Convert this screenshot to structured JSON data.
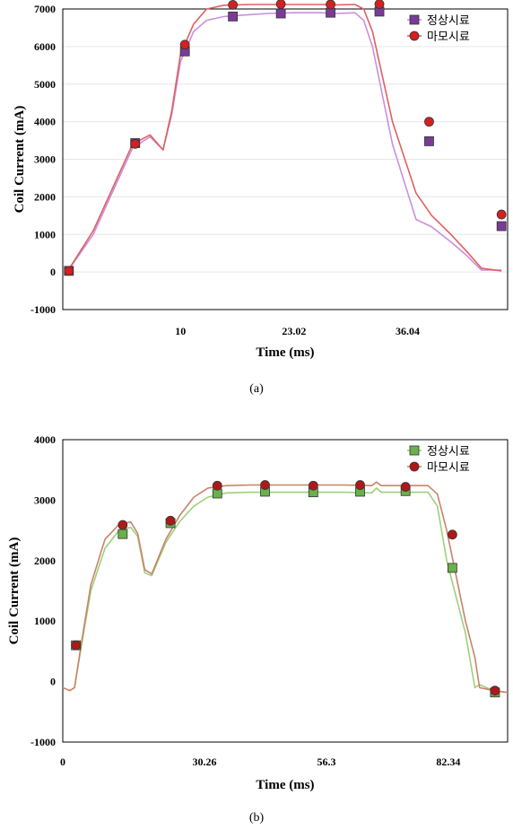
{
  "chart_data": [
    {
      "type": "line",
      "caption": "(a)",
      "ylabel": "Coil Current (mA)",
      "xlabel": "Time (ms)",
      "ylim": [
        -1000,
        7000
      ],
      "xlim": [
        -3.5,
        47.5
      ],
      "yticks": [
        -1000,
        0,
        1000,
        2000,
        3000,
        4000,
        5000,
        6000,
        7000
      ],
      "xticks": [
        10,
        23.02,
        36.04
      ],
      "xtick_labels": [
        "10",
        "23.02",
        "36.04"
      ],
      "grid": true,
      "legend_position": "top-right",
      "series": [
        {
          "name": "정상시료",
          "color": "#7a3b97",
          "line_color": "#c890dc",
          "marker": "square",
          "x": [
            -3,
            0,
            4.5,
            6.5,
            8,
            9,
            10,
            11.5,
            13,
            15,
            18,
            20,
            23,
            26,
            28,
            30,
            31,
            32,
            34.3,
            37,
            38.8,
            41,
            43,
            44.5,
            46.8
          ],
          "y": [
            0,
            1000,
            3300,
            3600,
            3250,
            4200,
            5600,
            6400,
            6700,
            6800,
            6850,
            6880,
            6900,
            6900,
            6880,
            6900,
            6700,
            6000,
            3400,
            1400,
            1200,
            800,
            400,
            50,
            50
          ],
          "markers_x": [
            -2.8,
            4.8,
            10.5,
            16,
            21.5,
            27.2,
            32.8,
            38.5,
            46.8
          ],
          "markers_y": [
            30,
            3430,
            5870,
            6800,
            6880,
            6900,
            6930,
            3480,
            1220
          ]
        },
        {
          "name": "마모시료",
          "color": "#d42020",
          "line_color": "#e06060",
          "marker": "circle",
          "x": [
            -3,
            0,
            4.5,
            6.5,
            8,
            9,
            10,
            11.5,
            13,
            15,
            18,
            20,
            23,
            26,
            28,
            30,
            31,
            32,
            34.3,
            37,
            38.8,
            41,
            43,
            44.5,
            46.8
          ],
          "y": [
            0,
            1100,
            3400,
            3650,
            3250,
            4300,
            5800,
            6600,
            7000,
            7100,
            7120,
            7120,
            7120,
            7120,
            7110,
            7120,
            7000,
            6400,
            4000,
            2100,
            1500,
            1000,
            500,
            100,
            30
          ],
          "markers_x": [
            -2.8,
            4.8,
            10.5,
            16,
            21.5,
            27.2,
            32.8,
            38.5,
            46.8
          ],
          "markers_y": [
            30,
            3410,
            6050,
            7110,
            7130,
            7120,
            7130,
            4000,
            1530
          ]
        }
      ]
    },
    {
      "type": "line",
      "caption": "(b)",
      "ylabel": "Coil Current (mA)",
      "xlabel": "Time (ms)",
      "ylim": [
        -1000,
        4000
      ],
      "xlim": [
        0,
        95
      ],
      "yticks": [
        -1000,
        0,
        1000,
        2000,
        3000,
        4000
      ],
      "xticks": [
        0,
        30.26,
        56.3,
        82.34
      ],
      "xtick_labels": [
        "0",
        "30.26",
        "56.3",
        "82.34"
      ],
      "grid": false,
      "legend_position": "top-right",
      "series": [
        {
          "name": "정상시료",
          "color": "#6ab04c",
          "line_color": "#9fd07a",
          "marker": "square",
          "x": [
            0,
            1.5,
            2.5,
            4,
            6,
            9,
            12,
            14.5,
            16,
            17.5,
            19,
            22,
            25,
            28,
            31,
            35,
            40,
            50,
            60,
            66,
            67,
            68,
            73,
            78,
            80,
            82,
            86,
            88,
            89,
            92,
            95
          ],
          "y": [
            -100,
            -150,
            -100,
            600,
            1500,
            2200,
            2500,
            2550,
            2400,
            1800,
            1750,
            2300,
            2650,
            2900,
            3050,
            3120,
            3130,
            3130,
            3130,
            3120,
            3200,
            3130,
            3130,
            3130,
            2900,
            2000,
            800,
            -100,
            -50,
            -150,
            -180
          ],
          "markers_x": [
            2.8,
            12.8,
            23,
            33,
            43.2,
            53.5,
            63.5,
            73.2,
            83.2,
            92.3
          ],
          "markers_y": [
            600,
            2440,
            2620,
            3110,
            3140,
            3130,
            3140,
            3150,
            1880,
            -180
          ]
        },
        {
          "name": "마모시료",
          "color": "#c0392b",
          "line_color": "#c8836a",
          "marker": "circle",
          "marker_fill": "#b01818",
          "x": [
            0,
            1.5,
            2.5,
            4,
            6,
            9,
            12,
            14.5,
            16,
            17.5,
            19,
            22,
            25,
            28,
            31,
            35,
            40,
            50,
            60,
            66,
            67,
            68,
            73,
            78,
            80,
            82,
            86,
            88,
            89,
            92,
            95
          ],
          "y": [
            -100,
            -150,
            -100,
            650,
            1600,
            2350,
            2600,
            2640,
            2450,
            1850,
            1780,
            2350,
            2750,
            3050,
            3200,
            3240,
            3250,
            3250,
            3250,
            3240,
            3300,
            3240,
            3240,
            3240,
            3100,
            2500,
            1000,
            400,
            -100,
            -150,
            -180
          ],
          "markers_x": [
            2.8,
            12.8,
            23,
            33,
            43.2,
            53.5,
            63.5,
            73.2,
            83.2,
            92.3
          ],
          "markers_y": [
            600,
            2590,
            2660,
            3240,
            3250,
            3240,
            3250,
            3220,
            2430,
            -150
          ]
        }
      ]
    }
  ]
}
